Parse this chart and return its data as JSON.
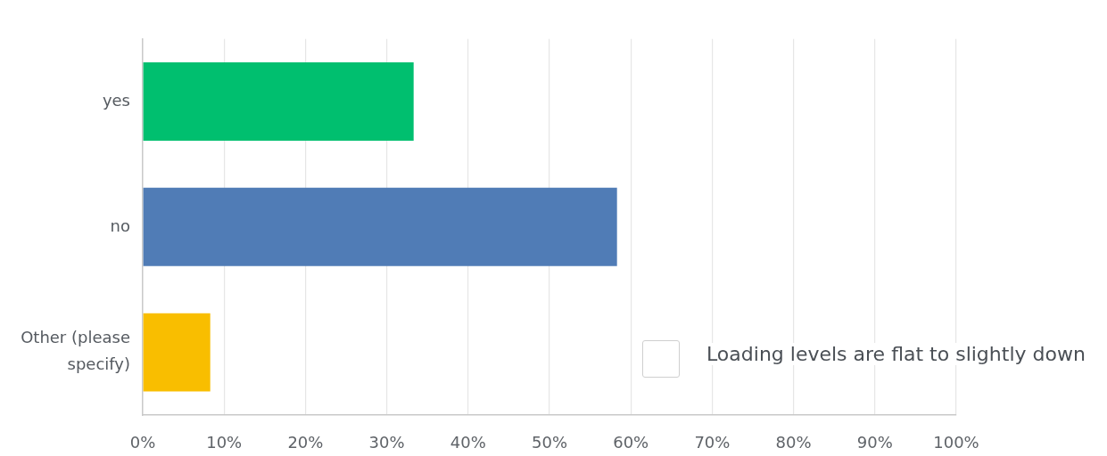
{
  "chart_data": {
    "type": "bar",
    "orientation": "horizontal",
    "categories": [
      "yes",
      "no",
      "Other (please specify)"
    ],
    "values": [
      33.3,
      58.3,
      8.3
    ],
    "colors": [
      "#00bf6f",
      "#507cb6",
      "#f9be00"
    ],
    "xlim": [
      0,
      100
    ],
    "xticks": [
      {
        "value": 0,
        "label": "0%"
      },
      {
        "value": 10,
        "label": "10%"
      },
      {
        "value": 20,
        "label": "20%"
      },
      {
        "value": 30,
        "label": "30%"
      },
      {
        "value": 40,
        "label": "40%"
      },
      {
        "value": 50,
        "label": "50%"
      },
      {
        "value": 60,
        "label": "60%"
      },
      {
        "value": 70,
        "label": "70%"
      },
      {
        "value": 80,
        "label": "80%"
      },
      {
        "value": 90,
        "label": "90%"
      },
      {
        "value": 100,
        "label": "100%"
      }
    ],
    "grid": "x",
    "annotations": [
      "Loading levels are flat to slightly down"
    ]
  }
}
